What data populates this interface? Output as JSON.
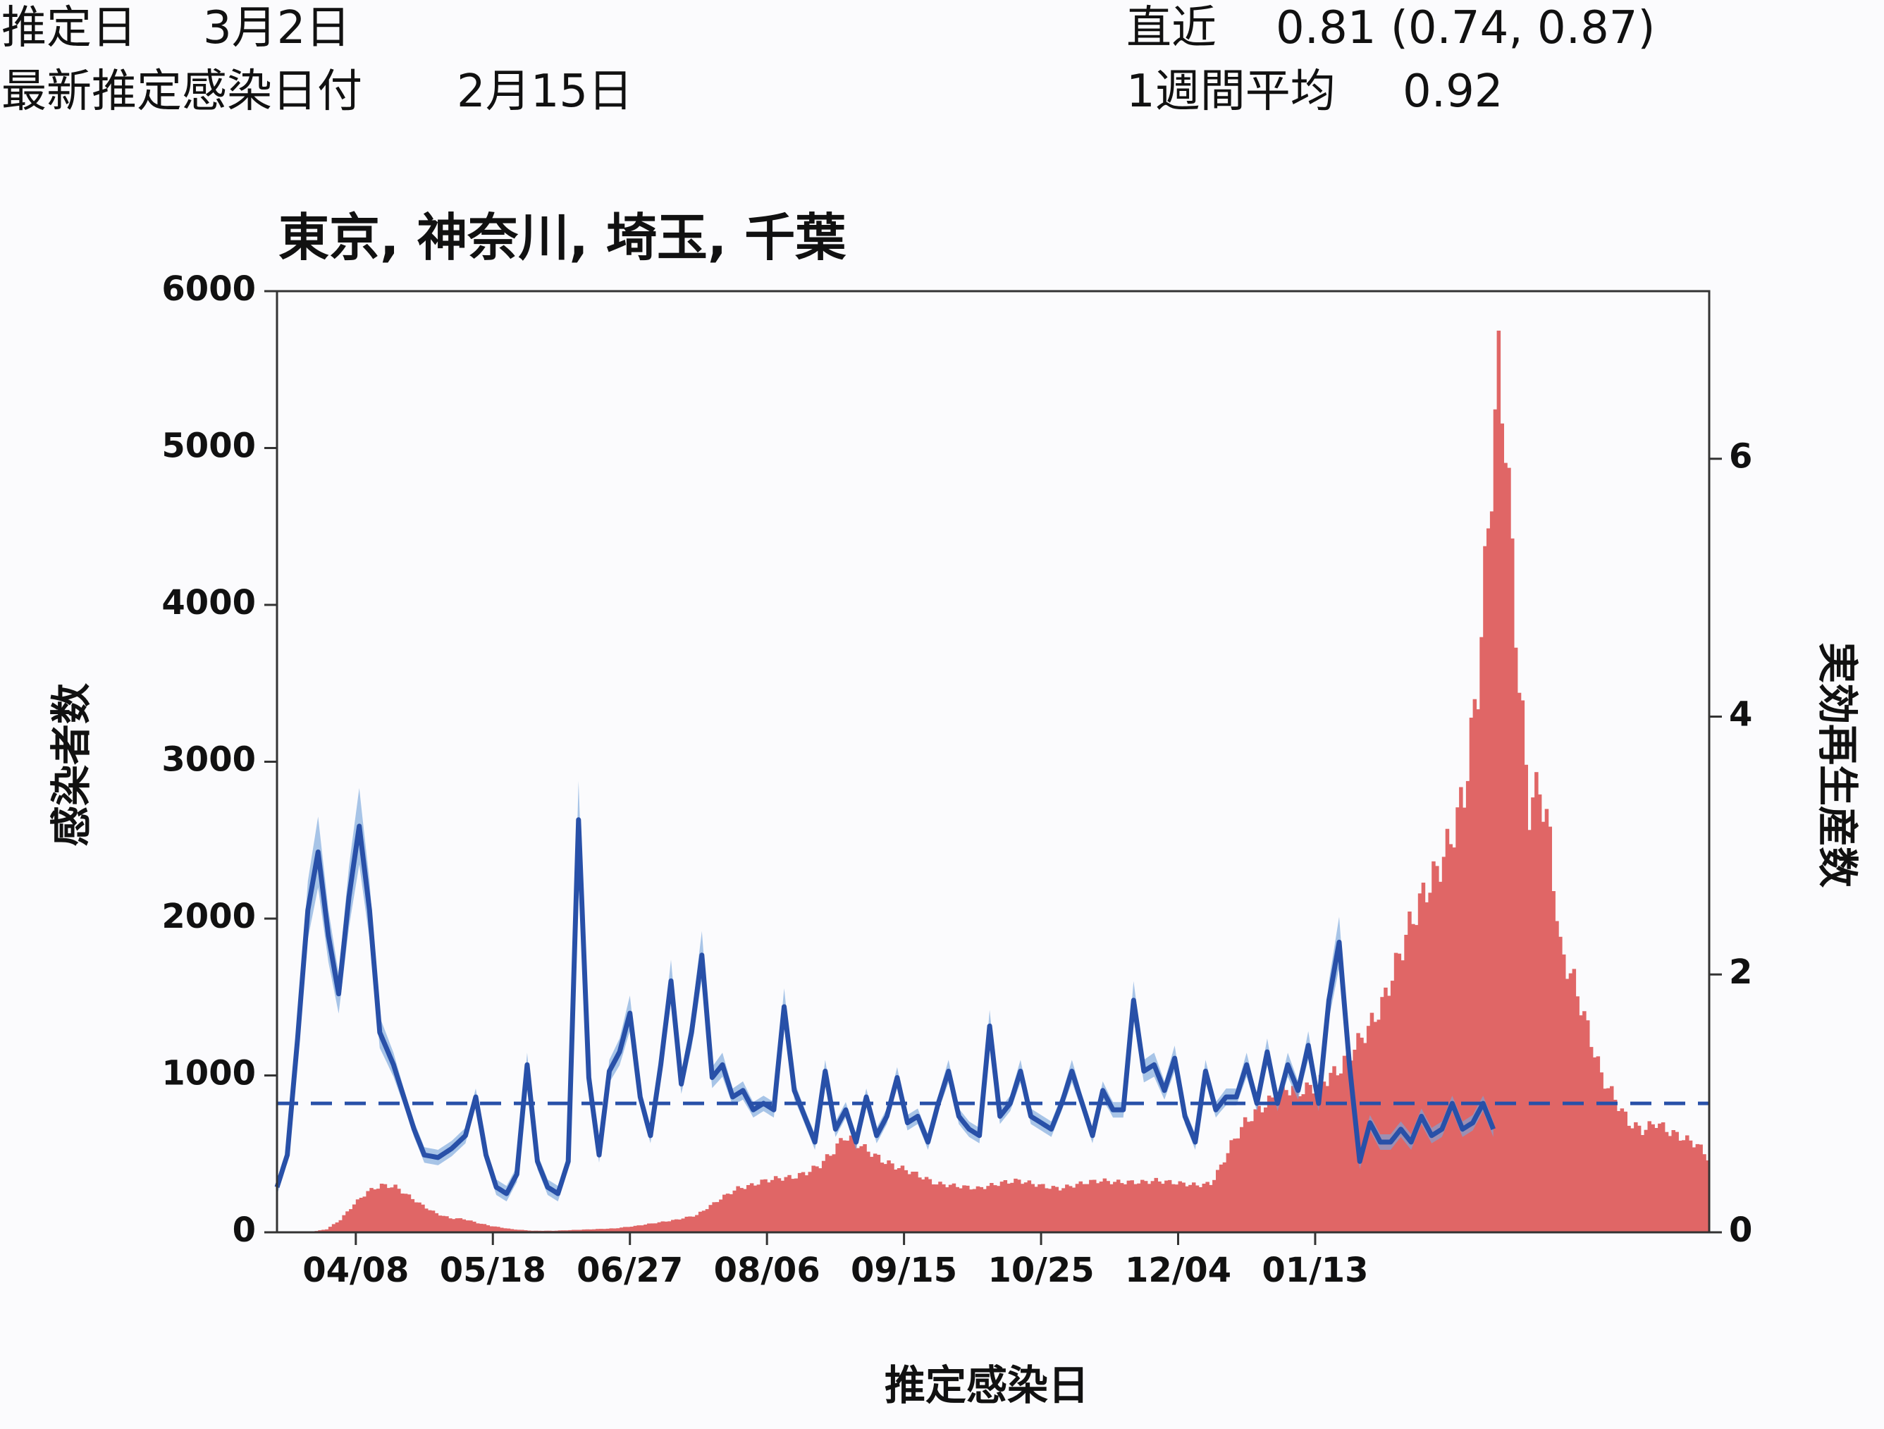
{
  "header": {
    "est_date_label": "推定日",
    "est_date_value": "3月2日",
    "latest_label": "最新推定感染日付",
    "latest_value": "2月15日",
    "recent_label": "直近",
    "recent_value": "0.81 (0.74, 0.87)",
    "week_label": "1週間平均",
    "week_value": "0.92"
  },
  "chart_data": {
    "type": "bar+line",
    "title": "東京, 神奈川, 埼玉, 千葉",
    "xlabel": "推定感染日",
    "ylabel_left": "感染者数",
    "ylabel_right": "実効再生産数",
    "x_tick_labels": [
      "04/08",
      "05/18",
      "06/27",
      "08/06",
      "09/15",
      "10/25",
      "12/04",
      "01/13"
    ],
    "y_left": {
      "range": [
        0,
        6000
      ],
      "ticks": [
        0,
        1000,
        2000,
        3000,
        4000,
        5000,
        6000
      ]
    },
    "y_right": {
      "range": [
        0,
        7.3
      ],
      "ticks": [
        0,
        2,
        4,
        6
      ]
    },
    "reference_line_rt": 1.0,
    "series": [
      {
        "kind": "bars",
        "color": "#e06666",
        "anchors": [
          [
            0,
            0
          ],
          [
            10,
            5
          ],
          [
            14,
            20
          ],
          [
            18,
            80
          ],
          [
            22,
            180
          ],
          [
            26,
            260
          ],
          [
            30,
            300
          ],
          [
            34,
            290
          ],
          [
            38,
            230
          ],
          [
            42,
            170
          ],
          [
            46,
            120
          ],
          [
            50,
            90
          ],
          [
            54,
            85
          ],
          [
            58,
            60
          ],
          [
            62,
            40
          ],
          [
            68,
            20
          ],
          [
            74,
            10
          ],
          [
            80,
            10
          ],
          [
            86,
            15
          ],
          [
            92,
            20
          ],
          [
            98,
            25
          ],
          [
            104,
            40
          ],
          [
            110,
            60
          ],
          [
            116,
            80
          ],
          [
            122,
            110
          ],
          [
            126,
            170
          ],
          [
            130,
            230
          ],
          [
            134,
            280
          ],
          [
            138,
            300
          ],
          [
            142,
            330
          ],
          [
            146,
            345
          ],
          [
            150,
            350
          ],
          [
            154,
            380
          ],
          [
            158,
            430
          ],
          [
            162,
            520
          ],
          [
            165,
            610
          ],
          [
            168,
            580
          ],
          [
            172,
            520
          ],
          [
            176,
            460
          ],
          [
            180,
            420
          ],
          [
            184,
            390
          ],
          [
            188,
            350
          ],
          [
            192,
            310
          ],
          [
            196,
            300
          ],
          [
            200,
            290
          ],
          [
            204,
            280
          ],
          [
            208,
            300
          ],
          [
            212,
            320
          ],
          [
            216,
            330
          ],
          [
            220,
            310
          ],
          [
            224,
            290
          ],
          [
            228,
            280
          ],
          [
            232,
            300
          ],
          [
            236,
            320
          ],
          [
            240,
            330
          ],
          [
            244,
            320
          ],
          [
            248,
            320
          ],
          [
            252,
            320
          ],
          [
            256,
            330
          ],
          [
            260,
            320
          ],
          [
            264,
            310
          ],
          [
            268,
            300
          ],
          [
            272,
            310
          ],
          [
            275,
            420
          ],
          [
            278,
            560
          ],
          [
            282,
            700
          ],
          [
            286,
            780
          ],
          [
            290,
            850
          ],
          [
            294,
            920
          ],
          [
            298,
            900
          ],
          [
            302,
            930
          ],
          [
            306,
            980
          ],
          [
            310,
            1050
          ],
          [
            314,
            1180
          ],
          [
            318,
            1300
          ],
          [
            322,
            1450
          ],
          [
            326,
            1700
          ],
          [
            330,
            1950
          ],
          [
            334,
            2150
          ],
          [
            338,
            2300
          ],
          [
            342,
            2500
          ],
          [
            346,
            2800
          ],
          [
            350,
            3500
          ],
          [
            353,
            4500
          ],
          [
            356,
            5500
          ],
          [
            358,
            5100
          ],
          [
            360,
            4300
          ],
          [
            362,
            3500
          ],
          [
            365,
            2700
          ],
          [
            368,
            2850
          ],
          [
            371,
            2500
          ],
          [
            374,
            1800
          ],
          [
            378,
            1600
          ],
          [
            382,
            1300
          ],
          [
            386,
            1000
          ],
          [
            390,
            850
          ],
          [
            394,
            700
          ],
          [
            398,
            650
          ],
          [
            402,
            700
          ],
          [
            406,
            640
          ],
          [
            410,
            600
          ],
          [
            414,
            560
          ],
          [
            417,
            480
          ]
        ]
      },
      {
        "kind": "line",
        "name": "Rt",
        "color": "#2850a8",
        "band_color": "#7aa6dc",
        "anchors": [
          [
            0,
            0.35
          ],
          [
            3,
            0.6
          ],
          [
            6,
            1.5
          ],
          [
            9,
            2.5
          ],
          [
            12,
            2.95
          ],
          [
            15,
            2.3
          ],
          [
            18,
            1.85
          ],
          [
            21,
            2.6
          ],
          [
            24,
            3.15
          ],
          [
            27,
            2.5
          ],
          [
            30,
            1.55
          ],
          [
            34,
            1.3
          ],
          [
            37,
            1.05
          ],
          [
            40,
            0.8
          ],
          [
            43,
            0.6
          ],
          [
            47,
            0.58
          ],
          [
            51,
            0.65
          ],
          [
            55,
            0.75
          ],
          [
            58,
            1.05
          ],
          [
            61,
            0.6
          ],
          [
            64,
            0.35
          ],
          [
            67,
            0.3
          ],
          [
            70,
            0.45
          ],
          [
            73,
            1.3
          ],
          [
            76,
            0.55
          ],
          [
            79,
            0.35
          ],
          [
            82,
            0.3
          ],
          [
            85,
            0.55
          ],
          [
            88,
            3.2
          ],
          [
            91,
            1.2
          ],
          [
            94,
            0.6
          ],
          [
            97,
            1.25
          ],
          [
            100,
            1.4
          ],
          [
            103,
            1.7
          ],
          [
            106,
            1.05
          ],
          [
            109,
            0.75
          ],
          [
            112,
            1.3
          ],
          [
            115,
            1.95
          ],
          [
            118,
            1.15
          ],
          [
            121,
            1.55
          ],
          [
            124,
            2.15
          ],
          [
            127,
            1.2
          ],
          [
            130,
            1.3
          ],
          [
            133,
            1.05
          ],
          [
            136,
            1.1
          ],
          [
            139,
            0.95
          ],
          [
            142,
            1.0
          ],
          [
            145,
            0.95
          ],
          [
            148,
            1.75
          ],
          [
            151,
            1.1
          ],
          [
            154,
            0.9
          ],
          [
            157,
            0.7
          ],
          [
            160,
            1.25
          ],
          [
            163,
            0.8
          ],
          [
            166,
            0.95
          ],
          [
            169,
            0.7
          ],
          [
            172,
            1.05
          ],
          [
            175,
            0.75
          ],
          [
            178,
            0.9
          ],
          [
            181,
            1.2
          ],
          [
            184,
            0.85
          ],
          [
            187,
            0.9
          ],
          [
            190,
            0.7
          ],
          [
            193,
            1.0
          ],
          [
            196,
            1.25
          ],
          [
            199,
            0.9
          ],
          [
            202,
            0.8
          ],
          [
            205,
            0.75
          ],
          [
            208,
            1.6
          ],
          [
            211,
            0.9
          ],
          [
            214,
            1.0
          ],
          [
            217,
            1.25
          ],
          [
            220,
            0.9
          ],
          [
            223,
            0.85
          ],
          [
            226,
            0.8
          ],
          [
            229,
            1.0
          ],
          [
            232,
            1.25
          ],
          [
            235,
            1.0
          ],
          [
            238,
            0.75
          ],
          [
            241,
            1.1
          ],
          [
            244,
            0.95
          ],
          [
            247,
            0.95
          ],
          [
            250,
            1.8
          ],
          [
            253,
            1.25
          ],
          [
            256,
            1.3
          ],
          [
            259,
            1.1
          ],
          [
            262,
            1.35
          ],
          [
            265,
            0.9
          ],
          [
            268,
            0.7
          ],
          [
            271,
            1.25
          ],
          [
            274,
            0.95
          ],
          [
            277,
            1.05
          ],
          [
            280,
            1.05
          ],
          [
            283,
            1.3
          ],
          [
            286,
            1.0
          ],
          [
            289,
            1.4
          ],
          [
            292,
            1.0
          ],
          [
            295,
            1.3
          ],
          [
            298,
            1.1
          ],
          [
            301,
            1.45
          ],
          [
            304,
            1.0
          ],
          [
            307,
            1.8
          ],
          [
            310,
            2.25
          ],
          [
            313,
            1.3
          ],
          [
            316,
            0.55
          ],
          [
            319,
            0.85
          ],
          [
            322,
            0.7
          ],
          [
            325,
            0.7
          ],
          [
            328,
            0.8
          ],
          [
            331,
            0.7
          ],
          [
            334,
            0.9
          ],
          [
            337,
            0.75
          ],
          [
            340,
            0.8
          ],
          [
            343,
            1.0
          ],
          [
            346,
            0.8
          ],
          [
            349,
            0.85
          ],
          [
            352,
            1.0
          ],
          [
            355,
            0.8
          ]
        ]
      }
    ]
  }
}
